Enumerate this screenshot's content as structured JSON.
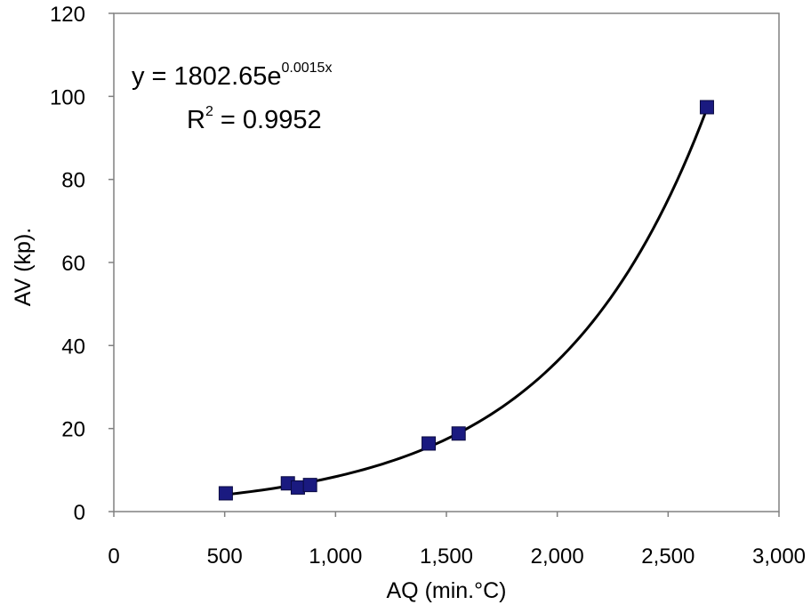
{
  "chart_data": {
    "type": "scatter",
    "title": "",
    "xlabel": "AQ (min.°C)",
    "ylabel": "AV (kp).",
    "xlim": [
      0,
      3000
    ],
    "ylim": [
      0,
      120
    ],
    "x_ticks": [
      0,
      500,
      1000,
      1500,
      2000,
      2500,
      3000
    ],
    "x_tick_labels": [
      "0",
      "500",
      "1,000",
      "1,500",
      "2,000",
      "2,500",
      "3,000"
    ],
    "y_ticks": [
      0,
      20,
      40,
      60,
      80,
      100,
      120
    ],
    "y_tick_labels": [
      "0",
      "20",
      "40",
      "60",
      "80",
      "100",
      "120"
    ],
    "grid": false,
    "legend": "none",
    "series": [
      {
        "name": "AV",
        "marker": "square",
        "color": "#1a1a80",
        "points": [
          {
            "x": 505,
            "y": 4.4
          },
          {
            "x": 785,
            "y": 6.8
          },
          {
            "x": 830,
            "y": 5.8
          },
          {
            "x": 885,
            "y": 6.4
          },
          {
            "x": 1420,
            "y": 16.4
          },
          {
            "x": 1555,
            "y": 18.8
          },
          {
            "x": 2675,
            "y": 97.4
          }
        ]
      }
    ],
    "trendline": {
      "type": "exponential",
      "color": "#000000",
      "x_range": [
        505,
        2675
      ],
      "equation_text": "y = 1802.65e",
      "equation_exponent": "0.0015x",
      "r2_text": "R",
      "r2_exponent": "2",
      "r2_value_text": " = 0.9952"
    },
    "colors": {
      "marker": "#1a1a80",
      "marker_stroke": "#0a0a40",
      "axis": "#808080",
      "trendline": "#000000"
    }
  }
}
